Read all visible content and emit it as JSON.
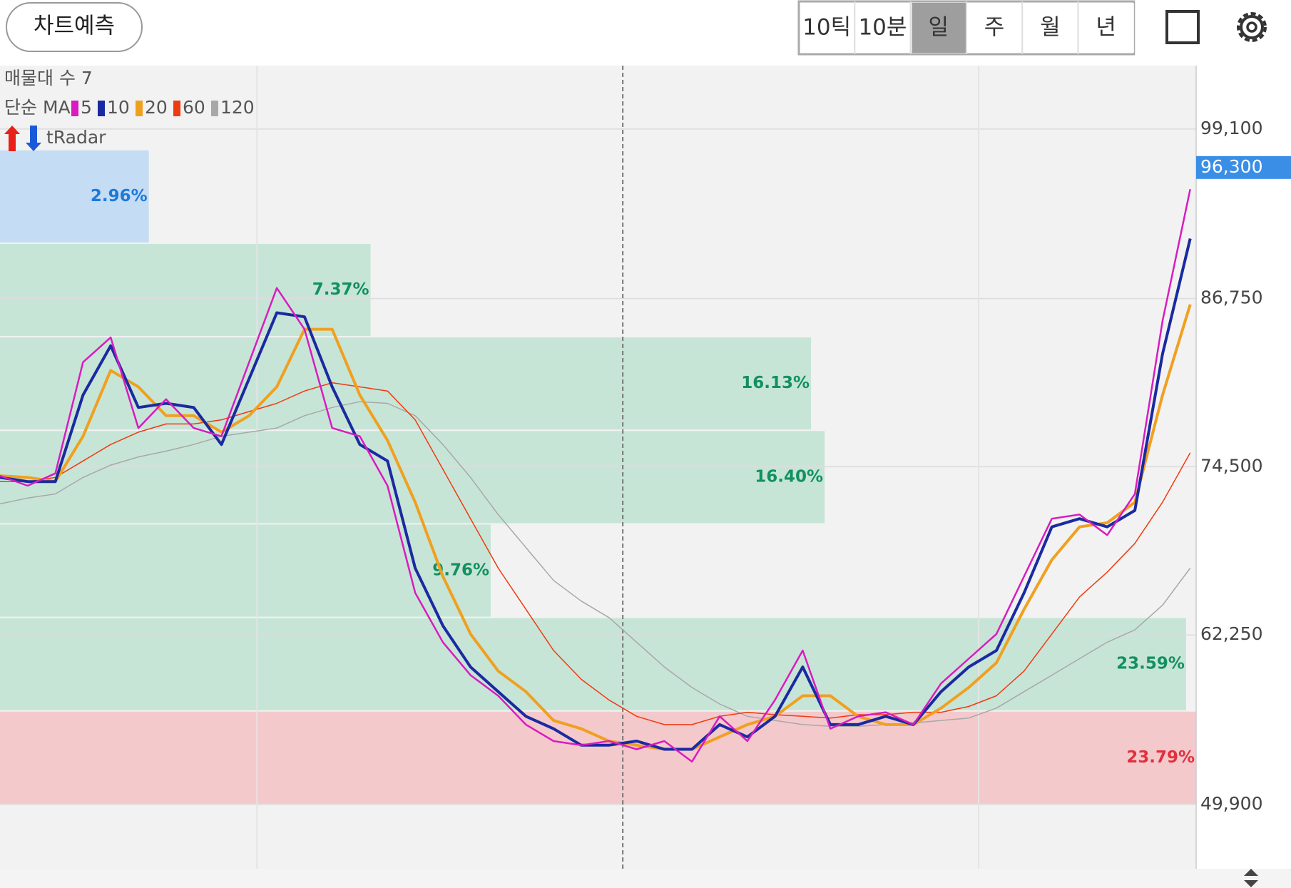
{
  "toolbar": {
    "predict_button": "차트예측",
    "periods": [
      "10틱",
      "10분",
      "일",
      "주",
      "월",
      "년"
    ],
    "selected_period": "일"
  },
  "legend": {
    "profile_label": "매물대 수 7",
    "ma_label": "단순 MA",
    "radar_label": "tRadar"
  },
  "chart_data": {
    "type": "line",
    "x": [
      "2024-02-22",
      "2024-03-07",
      "2024-03-21",
      "2024-04-04",
      "2024-04-18",
      "2024-05-02",
      "2024-05-16",
      "2024-05-30",
      "2024-06-13",
      "2024-06-27",
      "2024-07-11",
      "2024-07-25",
      "2024-08-08",
      "2024-08-22",
      "2024-09-05",
      "2024-09-19",
      "2024-10-03",
      "2024-10-17",
      "2024-10-31",
      "2024-11-14",
      "2024-11-28",
      "2024-12-12",
      "2024-12-26",
      "2025-01-09",
      "2025-01-23",
      "2025-02-06",
      "2025-02-20",
      "2025-03-06",
      "2025-03-20",
      "2025-04-03",
      "2025-04-17",
      "2025-05-01",
      "2025-05-15",
      "2025-05-29",
      "2025-06-12",
      "2025-06-26",
      "2025-07-10",
      "2025-07-24",
      "2025-08-07",
      "2025-08-21",
      "2025-09-04",
      "2025-09-18",
      "2025-10-02",
      "2025-10-16"
    ],
    "series": [
      {
        "name": "120",
        "color": "#a8a8a8",
        "width": 1.5,
        "values": [
          71800,
          72220,
          72520,
          73720,
          74620,
          75220,
          75640,
          76120,
          76720,
          77020,
          77320,
          78220,
          78820,
          79240,
          79120,
          78220,
          76120,
          73720,
          71020,
          68620,
          66220,
          64720,
          63520,
          61720,
          59920,
          58420,
          57220,
          56320,
          56020,
          55720,
          55600,
          55600,
          55720,
          55840,
          56020,
          56200,
          56920,
          58120,
          59320,
          60520,
          61720,
          62620,
          64420,
          67120
        ]
      },
      {
        "name": "60",
        "color": "#f03a10",
        "width": 1.5,
        "values": [
          73420,
          73420,
          73720,
          74920,
          76120,
          77020,
          77620,
          77620,
          77920,
          78520,
          79120,
          80020,
          80620,
          80320,
          80020,
          77920,
          74320,
          70720,
          67120,
          64120,
          61120,
          59020,
          57520,
          56320,
          55720,
          55720,
          56320,
          56620,
          56440,
          56320,
          56200,
          56440,
          56440,
          56620,
          56620,
          57040,
          57820,
          59620,
          62320,
          65020,
          66820,
          68920,
          71920,
          75520
        ]
      },
      {
        "name": "20",
        "color": "#f0a020",
        "width": 4,
        "values": [
          73840,
          73720,
          73420,
          76720,
          81520,
          80320,
          78220,
          78220,
          77020,
          78220,
          80320,
          84520,
          84520,
          79720,
          76420,
          71920,
          66520,
          62320,
          59620,
          58120,
          56020,
          55420,
          54520,
          54220,
          53920,
          53920,
          54820,
          55720,
          56320,
          57820,
          57820,
          56320,
          55720,
          55720,
          56920,
          58420,
          60220,
          64120,
          67720,
          70120,
          70420,
          71920,
          79720,
          86320
        ]
      },
      {
        "name": "10",
        "color": "#1a2aa0",
        "width": 4,
        "values": [
          73720,
          73420,
          73420,
          79720,
          83320,
          78820,
          79120,
          78820,
          76120,
          80920,
          85720,
          85420,
          80320,
          76120,
          74920,
          67120,
          62920,
          59920,
          58120,
          56320,
          55420,
          54220,
          54220,
          54520,
          53920,
          53920,
          55720,
          54820,
          56320,
          59920,
          55720,
          55720,
          56320,
          55720,
          58120,
          59920,
          61120,
          65320,
          70120,
          70720,
          70120,
          71320,
          82720,
          91120
        ]
      },
      {
        "name": "5",
        "color": "#d81cc0",
        "width": 2.5,
        "values": [
          73840,
          73120,
          74020,
          82120,
          83920,
          77320,
          79420,
          77320,
          76720,
          82120,
          87520,
          84520,
          77320,
          76720,
          73120,
          65320,
          61720,
          59320,
          57820,
          55720,
          54520,
          54220,
          54520,
          53920,
          54520,
          53020,
          56320,
          54520,
          57520,
          61120,
          55420,
          56320,
          56620,
          55720,
          58720,
          60520,
          62320,
          66520,
          70720,
          71020,
          69520,
          72520,
          85120,
          94720
        ]
      }
    ],
    "legend_order": [
      "5",
      "10",
      "20",
      "60",
      "120"
    ],
    "xlim": [
      "2024-02-22",
      "2025-10-19"
    ],
    "xticks": [
      "2024-07-01",
      "2025-01-02",
      "2025-07-01"
    ],
    "ylim": [
      45220,
      103720
    ],
    "yticks": [
      {
        "value": 49900,
        "label": "49,900"
      },
      {
        "value": 62250,
        "label": "62,250"
      },
      {
        "value": 74500,
        "label": "74,500"
      },
      {
        "value": 86750,
        "label": "86,750"
      },
      {
        "value": 99100,
        "label": "99,100"
      }
    ],
    "grid": true,
    "current_price": {
      "value": 96300,
      "label": "96,300",
      "color": "#3a8ee6"
    },
    "volume_profile": {
      "bins": [
        49900,
        56714,
        63529,
        70343,
        77157,
        83971,
        90786,
        97600
      ],
      "values": [
        23.79,
        23.59,
        9.76,
        16.4,
        16.13,
        7.37,
        2.96
      ],
      "value_labels": [
        "23.79%",
        "23.59%",
        "9.76%",
        "16.40%",
        "16.13%",
        "7.37%",
        "2.96%"
      ],
      "colors": [
        "#f5c2c6",
        "#bfe3d2",
        "#bfe3d2",
        "#bfe3d2",
        "#bfe3d2",
        "#bfe3d2",
        "#bcd8f5"
      ],
      "label_colors": [
        "#e0303e",
        "#139060",
        "#139060",
        "#139060",
        "#139060",
        "#139060",
        "#1e7ad8"
      ]
    }
  }
}
